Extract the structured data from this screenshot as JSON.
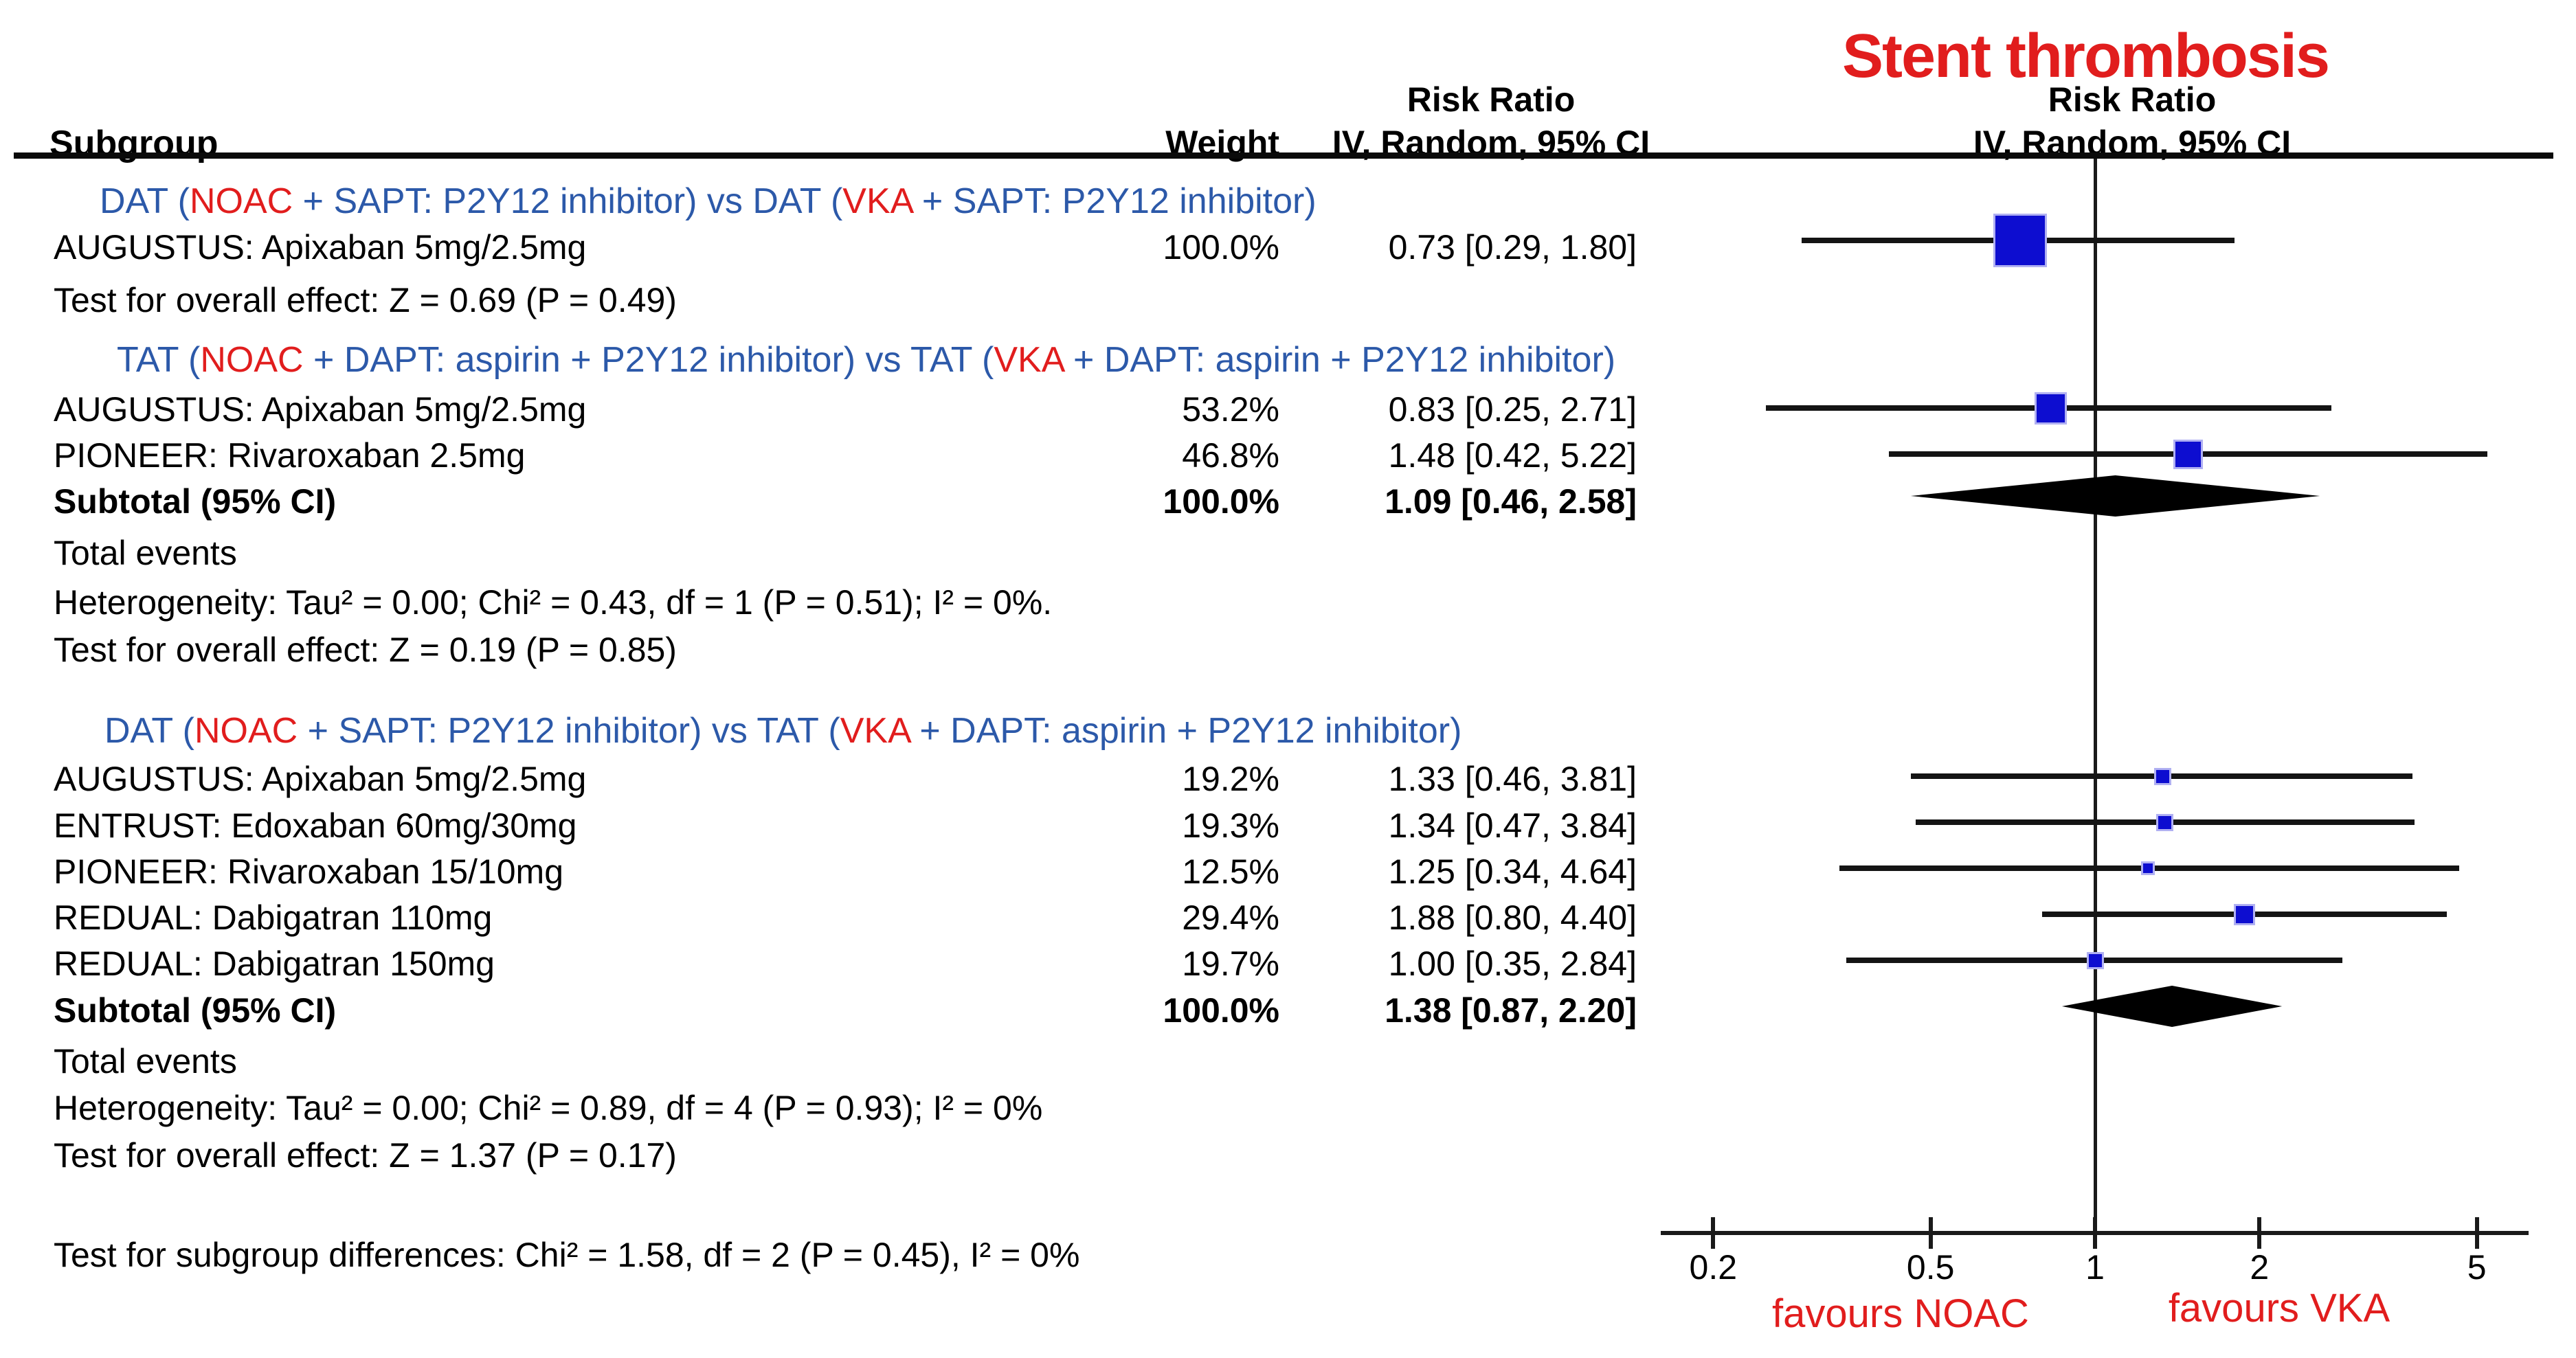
{
  "title": "Stent thrombosis",
  "header": {
    "subgroup": "Subgroup",
    "weight": "Weight",
    "risk_ratio_stats": "Risk Ratio",
    "method_stats": "IV, Random, 95% CI",
    "risk_ratio_plot": "Risk Ratio",
    "method_plot": "IV, Random, 95% CI"
  },
  "table": {
    "group_headings": [
      {
        "parts": [
          "DAT (",
          "NOAC",
          " + SAPT: P2Y12 inhibitor) vs DAT (",
          "VKA",
          " + SAPT: P2Y12 inhibitor)"
        ]
      },
      {
        "parts": [
          "TAT (",
          "NOAC",
          " + DAPT: aspirin + P2Y12 inhibitor) vs TAT (",
          "VKA",
          " + DAPT: aspirin + P2Y12 inhibitor)"
        ]
      },
      {
        "parts": [
          "DAT (",
          "NOAC",
          " + SAPT: P2Y12 inhibitor) vs TAT (",
          "VKA",
          " + DAPT: aspirin + P2Y12 inhibitor)"
        ]
      }
    ],
    "rows": [
      {
        "label": "AUGUSTUS: Apixaban 5mg/2.5mg",
        "weight": "100.0%",
        "rr": "0.73 [0.29, 1.80]"
      },
      {
        "label": "AUGUSTUS: Apixaban 5mg/2.5mg",
        "weight": "53.2%",
        "rr": "0.83 [0.25, 2.71]"
      },
      {
        "label": "PIONEER: Rivaroxaban 2.5mg",
        "weight": "46.8%",
        "rr": "1.48 [0.42, 5.22]"
      },
      {
        "label": "Subtotal (95% CI)",
        "weight": "100.0%",
        "rr": "1.09 [0.46, 2.58]"
      },
      {
        "label": "AUGUSTUS: Apixaban 5mg/2.5mg",
        "weight": "19.2%",
        "rr": "1.33 [0.46, 3.81]"
      },
      {
        "label": "ENTRUST: Edoxaban 60mg/30mg",
        "weight": "19.3%",
        "rr": "1.34 [0.47, 3.84]"
      },
      {
        "label": "PIONEER: Rivaroxaban 15/10mg",
        "weight": "12.5%",
        "rr": "1.25 [0.34, 4.64]"
      },
      {
        "label": "REDUAL: Dabigatran 110mg",
        "weight": "29.4%",
        "rr": "1.88 [0.80, 4.40]"
      },
      {
        "label": "REDUAL: Dabigatran 150mg",
        "weight": "19.7%",
        "rr": "1.00 [0.35, 2.84]"
      },
      {
        "label": "Subtotal (95% CI)",
        "weight": "100.0%",
        "rr": "1.38 [0.87, 2.20]"
      }
    ],
    "stat_lines": [
      "Test for overall effect: Z = 0.69 (P = 0.49)",
      "Total events",
      "Heterogeneity: Tau² = 0.00; Chi² = 0.43, df = 1 (P = 0.51); I² = 0%.",
      "Test for overall effect: Z = 0.19 (P = 0.85)",
      "Total events",
      "Heterogeneity: Tau² = 0.00; Chi² = 0.89, df = 4 (P = 0.93); I² = 0%",
      "Test for overall effect: Z = 1.37 (P = 0.17)",
      "Test for subgroup differences: Chi² = 1.58, df = 2 (P = 0.45), I² = 0%"
    ]
  },
  "chart_data": {
    "type": "scatter",
    "subtype": "forest-plot",
    "title": "Stent thrombosis",
    "effect_measure": "Risk Ratio",
    "method": "IV, Random, 95% CI",
    "x_scale": "log",
    "x_ticks": [
      "0.2",
      "0.5",
      "1",
      "2",
      "5"
    ],
    "xlim": [
      0.16,
      6.2
    ],
    "line_of_no_effect": 1,
    "favours_left": "favours NOAC",
    "favours_right": "favours VKA",
    "marker_color": "#0d0dd0",
    "diamond_color": "#000000",
    "accent_red": "#e11d1d",
    "heading_blue": "#2c59a9",
    "studies": [
      {
        "group": "DAT (NOAC + SAPT) vs DAT (VKA + SAPT)",
        "label": "AUGUSTUS: Apixaban 5mg/2.5mg",
        "weight_pct": 100.0,
        "rr": 0.73,
        "ci_low": 0.29,
        "ci_high": 1.8
      },
      {
        "group": "TAT (NOAC + DAPT) vs TAT (VKA + DAPT)",
        "label": "AUGUSTUS: Apixaban 5mg/2.5mg",
        "weight_pct": 53.2,
        "rr": 0.83,
        "ci_low": 0.25,
        "ci_high": 2.71
      },
      {
        "group": "TAT (NOAC + DAPT) vs TAT (VKA + DAPT)",
        "label": "PIONEER: Rivaroxaban 2.5mg",
        "weight_pct": 46.8,
        "rr": 1.48,
        "ci_low": 0.42,
        "ci_high": 5.22
      },
      {
        "group": "DAT (NOAC + SAPT) vs TAT (VKA + DAPT)",
        "label": "AUGUSTUS: Apixaban 5mg/2.5mg",
        "weight_pct": 19.2,
        "rr": 1.33,
        "ci_low": 0.46,
        "ci_high": 3.81
      },
      {
        "group": "DAT (NOAC + SAPT) vs TAT (VKA + DAPT)",
        "label": "ENTRUST: Edoxaban 60mg/30mg",
        "weight_pct": 19.3,
        "rr": 1.34,
        "ci_low": 0.47,
        "ci_high": 3.84
      },
      {
        "group": "DAT (NOAC + SAPT) vs TAT (VKA + DAPT)",
        "label": "PIONEER: Rivaroxaban 15/10mg",
        "weight_pct": 12.5,
        "rr": 1.25,
        "ci_low": 0.34,
        "ci_high": 4.64
      },
      {
        "group": "DAT (NOAC + SAPT) vs TAT (VKA + DAPT)",
        "label": "REDUAL: Dabigatran 110mg",
        "weight_pct": 29.4,
        "rr": 1.88,
        "ci_low": 0.8,
        "ci_high": 4.4
      },
      {
        "group": "DAT (NOAC + SAPT) vs TAT (VKA + DAPT)",
        "label": "REDUAL: Dabigatran 150mg",
        "weight_pct": 19.7,
        "rr": 1.0,
        "ci_low": 0.35,
        "ci_high": 2.84
      }
    ],
    "subtotals": [
      {
        "group": "TAT (NOAC + DAPT) vs TAT (VKA + DAPT)",
        "rr": 1.09,
        "ci_low": 0.46,
        "ci_high": 2.58
      },
      {
        "group": "DAT (NOAC + SAPT) vs TAT (VKA + DAPT)",
        "rr": 1.38,
        "ci_low": 0.87,
        "ci_high": 2.2
      }
    ]
  }
}
